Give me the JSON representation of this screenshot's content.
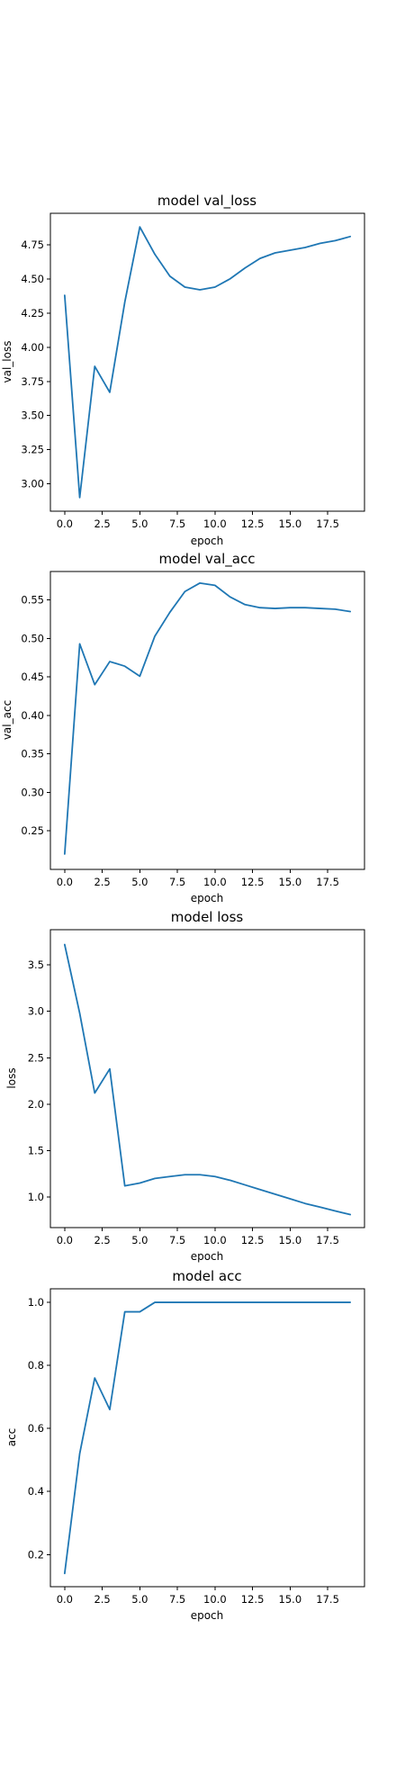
{
  "colors": {
    "line": "#1f77b4",
    "axis": "#000000",
    "background": "#ffffff"
  },
  "chart_data": [
    {
      "type": "line",
      "title": "model val_loss",
      "xlabel": "epoch",
      "ylabel": "val_loss",
      "xlim": [
        -0.95,
        19.95
      ],
      "ylim": [
        2.8,
        4.98
      ],
      "xticks": [
        0.0,
        2.5,
        5.0,
        7.5,
        10.0,
        12.5,
        15.0,
        17.5
      ],
      "xtick_labels": [
        "0.0",
        "2.5",
        "5.0",
        "7.5",
        "10.0",
        "12.5",
        "15.0",
        "17.5"
      ],
      "yticks": [
        3.0,
        3.25,
        3.5,
        3.75,
        4.0,
        4.25,
        4.5,
        4.75
      ],
      "ytick_labels": [
        "3.00",
        "3.25",
        "3.50",
        "3.75",
        "4.00",
        "4.25",
        "4.50",
        "4.75"
      ],
      "grid": false,
      "x": [
        0,
        1,
        2,
        3,
        4,
        5,
        6,
        7,
        8,
        9,
        10,
        11,
        12,
        13,
        14,
        15,
        16,
        17,
        18,
        19
      ],
      "y": [
        4.38,
        2.9,
        3.86,
        3.67,
        4.33,
        4.88,
        4.68,
        4.52,
        4.44,
        4.42,
        4.44,
        4.5,
        4.58,
        4.65,
        4.69,
        4.71,
        4.73,
        4.76,
        4.78,
        4.81
      ]
    },
    {
      "type": "line",
      "title": "model val_acc",
      "xlabel": "epoch",
      "ylabel": "val_acc",
      "xlim": [
        -0.95,
        19.95
      ],
      "ylim": [
        0.2,
        0.587
      ],
      "xticks": [
        0.0,
        2.5,
        5.0,
        7.5,
        10.0,
        12.5,
        15.0,
        17.5
      ],
      "xtick_labels": [
        "0.0",
        "2.5",
        "5.0",
        "7.5",
        "10.0",
        "12.5",
        "15.0",
        "17.5"
      ],
      "yticks": [
        0.25,
        0.3,
        0.35,
        0.4,
        0.45,
        0.5,
        0.55
      ],
      "ytick_labels": [
        "0.25",
        "0.30",
        "0.35",
        "0.40",
        "0.45",
        "0.50",
        "0.55"
      ],
      "grid": false,
      "x": [
        0,
        1,
        2,
        3,
        4,
        5,
        6,
        7,
        8,
        9,
        10,
        11,
        12,
        13,
        14,
        15,
        16,
        17,
        18,
        19
      ],
      "y": [
        0.22,
        0.493,
        0.44,
        0.47,
        0.464,
        0.451,
        0.503,
        0.534,
        0.561,
        0.572,
        0.569,
        0.554,
        0.544,
        0.54,
        0.539,
        0.54,
        0.54,
        0.539,
        0.538,
        0.535
      ]
    },
    {
      "type": "line",
      "title": "model loss",
      "xlabel": "epoch",
      "ylabel": "loss",
      "xlim": [
        -0.95,
        19.95
      ],
      "ylim": [
        0.67,
        3.88
      ],
      "xticks": [
        0.0,
        2.5,
        5.0,
        7.5,
        10.0,
        12.5,
        15.0,
        17.5
      ],
      "xtick_labels": [
        "0.0",
        "2.5",
        "5.0",
        "7.5",
        "10.0",
        "12.5",
        "15.0",
        "17.5"
      ],
      "yticks": [
        1.0,
        1.5,
        2.0,
        2.5,
        3.0,
        3.5
      ],
      "ytick_labels": [
        "1.0",
        "1.5",
        "2.0",
        "2.5",
        "3.0",
        "3.5"
      ],
      "grid": false,
      "x": [
        0,
        1,
        2,
        3,
        4,
        5,
        6,
        7,
        8,
        9,
        10,
        11,
        12,
        13,
        14,
        15,
        16,
        17,
        18,
        19
      ],
      "y": [
        3.72,
        2.98,
        2.12,
        2.38,
        1.12,
        1.15,
        1.2,
        1.22,
        1.24,
        1.24,
        1.22,
        1.18,
        1.13,
        1.08,
        1.03,
        0.98,
        0.93,
        0.89,
        0.85,
        0.81
      ]
    },
    {
      "type": "line",
      "title": "model acc",
      "xlabel": "epoch",
      "ylabel": "acc",
      "xlim": [
        -0.95,
        19.95
      ],
      "ylim": [
        0.098,
        1.043
      ],
      "xticks": [
        0.0,
        2.5,
        5.0,
        7.5,
        10.0,
        12.5,
        15.0,
        17.5
      ],
      "xtick_labels": [
        "0.0",
        "2.5",
        "5.0",
        "7.5",
        "10.0",
        "12.5",
        "15.0",
        "17.5"
      ],
      "yticks": [
        0.2,
        0.4,
        0.6,
        0.8,
        1.0
      ],
      "ytick_labels": [
        "0.2",
        "0.4",
        "0.6",
        "0.8",
        "1.0"
      ],
      "grid": false,
      "x": [
        0,
        1,
        2,
        3,
        4,
        5,
        6,
        7,
        8,
        9,
        10,
        11,
        12,
        13,
        14,
        15,
        16,
        17,
        18,
        19
      ],
      "y": [
        0.14,
        0.52,
        0.76,
        0.66,
        0.97,
        0.97,
        1.0,
        1.0,
        1.0,
        1.0,
        1.0,
        1.0,
        1.0,
        1.0,
        1.0,
        1.0,
        1.0,
        1.0,
        1.0,
        1.0
      ]
    }
  ]
}
